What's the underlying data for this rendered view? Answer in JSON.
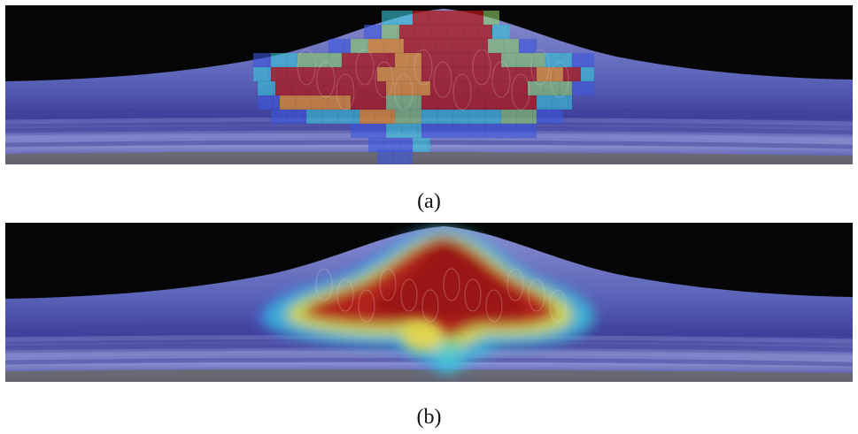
{
  "figure": {
    "panels": [
      {
        "caption": "(a)",
        "style": "grid-blocks"
      },
      {
        "caption": "(b)",
        "style": "smooth"
      }
    ]
  },
  "colors": {
    "background_dark": "#050505",
    "tissue_base": "#5a63b8",
    "tissue_dark": "#3f3f9a",
    "tissue_light": "#8a8fd0",
    "choroid_gray": "#6a6a6a",
    "heat_blue": "#3e58e0",
    "heat_cyan": "#38c8d8",
    "heat_green": "#8fd36a",
    "heat_yellow": "#e8d84a",
    "heat_orange": "#e08a2a",
    "heat_red": "#b01818",
    "heat_darkred": "#8a1010"
  }
}
